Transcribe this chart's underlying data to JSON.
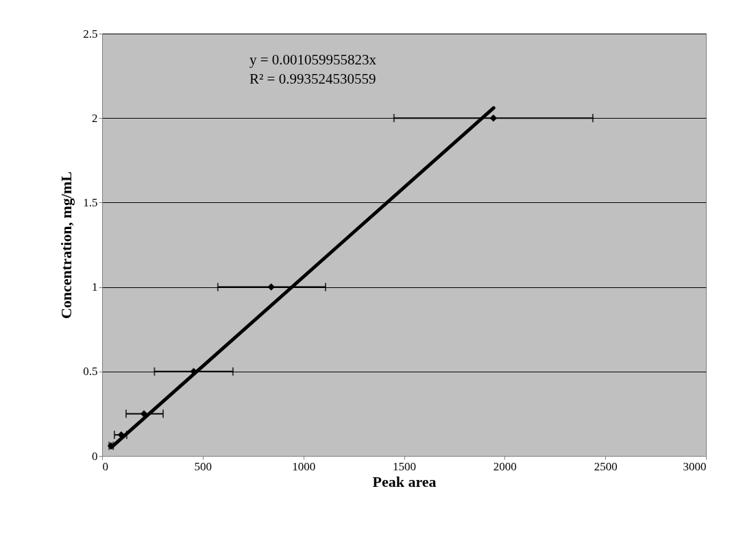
{
  "chart_data": {
    "type": "scatter",
    "xlabel": "Peak area",
    "ylabel": "Concentration, mg/mL",
    "annotations": [
      "y = 0.001059955823x",
      "R² = 0.993524530559"
    ],
    "series": [
      {
        "color": "#000000",
        "marker": "diamond",
        "x": [
          44,
          95,
          208,
          455,
          840,
          1944
        ],
        "values": [
          0.06,
          0.125,
          0.25,
          0.5,
          1,
          2
        ],
        "xerrors": [
          [
            35,
            55
          ],
          [
            61,
            122
          ],
          [
            119,
            303
          ],
          [
            260,
            650
          ],
          [
            575,
            1110
          ],
          [
            1450,
            2438
          ]
        ]
      },
      {
        "type": "line",
        "color": "#000000",
        "line_style": "solid",
        "x": [
          45,
          1945
        ],
        "values": [
          0.05,
          2.06
        ]
      }
    ],
    "xlim": [
      0,
      3000
    ],
    "xticks": [
      0,
      500,
      1000,
      1500,
      2000,
      2500,
      3000
    ],
    "ylim": [
      0,
      2.5
    ],
    "yticks": [
      0,
      0.5,
      1,
      1.5,
      2,
      2.5
    ],
    "grid": "y"
  }
}
